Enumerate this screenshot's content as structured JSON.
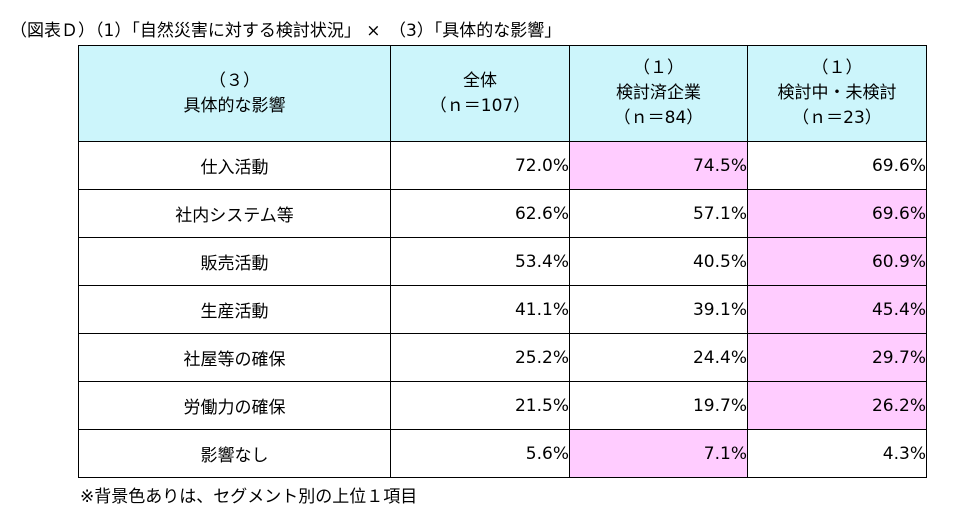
{
  "caption": "（図表Ｄ）（1）「自然災害に対する検討状況」 ×　（3）「具体的な影響」",
  "header": {
    "row_label": {
      "line1": "（３）",
      "line2": "具体的な影響"
    },
    "columns": [
      {
        "line1": "全体",
        "line2": "（ｎ＝107）"
      },
      {
        "line1": "（１）",
        "line2": "検討済企業",
        "line3": "（ｎ＝84）"
      },
      {
        "line1": "（１）",
        "line2": "検討中・未検討",
        "line3": "（ｎ＝23）"
      }
    ]
  },
  "rows": [
    {
      "label": "仕入活動",
      "values": [
        "72.0%",
        "74.5%",
        "69.6%"
      ],
      "highlight": 1
    },
    {
      "label": "社内システム等",
      "values": [
        "62.6%",
        "57.1%",
        "69.6%"
      ],
      "highlight": 2
    },
    {
      "label": "販売活動",
      "values": [
        "53.4%",
        "40.5%",
        "60.9%"
      ],
      "highlight": 2
    },
    {
      "label": "生産活動",
      "values": [
        "41.1%",
        "39.1%",
        "45.4%"
      ],
      "highlight": 2
    },
    {
      "label": "社屋等の確保",
      "values": [
        "25.2%",
        "24.4%",
        "29.7%"
      ],
      "highlight": 2
    },
    {
      "label": "労働力の確保",
      "values": [
        "21.5%",
        "19.7%",
        "26.2%"
      ],
      "highlight": 2
    },
    {
      "label": "影響なし",
      "values": [
        "5.6%",
        "7.1%",
        "4.3%"
      ],
      "highlight": 1
    }
  ],
  "footnote": "※背景色ありは、セグメント別の上位１項目",
  "colors": {
    "header_bg": "#ccf5fb",
    "highlight_bg": "#ffccff",
    "border": "#000000"
  }
}
